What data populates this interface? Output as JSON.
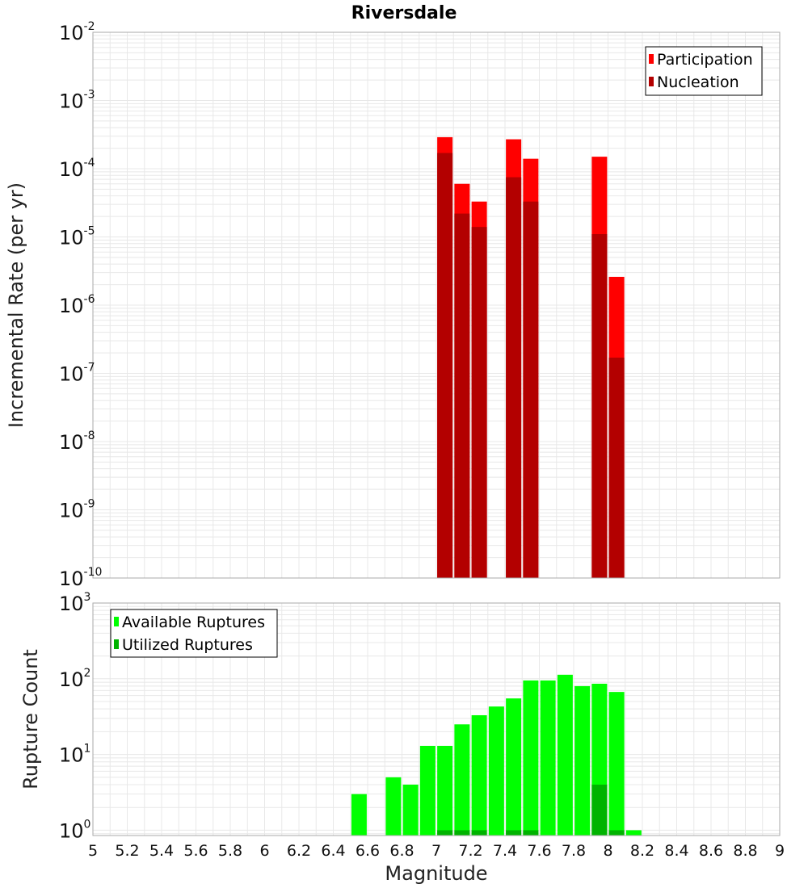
{
  "title": "Riversdale",
  "xlabel": "Magnitude",
  "x_ticks": [
    "5",
    "5.2",
    "5.4",
    "5.6",
    "5.8",
    "6",
    "6.2",
    "6.4",
    "6.6",
    "6.8",
    "7",
    "7.2",
    "7.4",
    "7.6",
    "7.8",
    "8",
    "8.2",
    "8.4",
    "8.6",
    "8.8",
    "9"
  ],
  "chart_data": [
    {
      "type": "bar",
      "scale": "log",
      "ylabel": "Incremental Rate (per yr)",
      "xlim": [
        5,
        9
      ],
      "ylim_exponents": [
        -10,
        -2
      ],
      "y_ticks": [
        {
          "base": "10",
          "exp": "-2"
        },
        {
          "base": "10",
          "exp": "-3"
        },
        {
          "base": "10",
          "exp": "-4"
        },
        {
          "base": "10",
          "exp": "-5"
        },
        {
          "base": "10",
          "exp": "-6"
        },
        {
          "base": "10",
          "exp": "-7"
        },
        {
          "base": "10",
          "exp": "-8"
        },
        {
          "base": "10",
          "exp": "-9"
        },
        {
          "base": "10",
          "exp": "-10"
        }
      ],
      "legend_position": "top-right",
      "grid": true,
      "series": [
        {
          "name": "Participation",
          "color": "#ff0000",
          "points": [
            {
              "x": 7.05,
              "y": 0.00029
            },
            {
              "x": 7.15,
              "y": 6e-05
            },
            {
              "x": 7.25,
              "y": 3.3e-05
            },
            {
              "x": 7.45,
              "y": 0.00027
            },
            {
              "x": 7.55,
              "y": 0.00014
            },
            {
              "x": 7.95,
              "y": 0.00015
            },
            {
              "x": 8.05,
              "y": 2.6e-06
            }
          ]
        },
        {
          "name": "Nucleation",
          "color": "#b30000",
          "points": [
            {
              "x": 7.05,
              "y": 0.00017
            },
            {
              "x": 7.15,
              "y": 2.2e-05
            },
            {
              "x": 7.25,
              "y": 1.4e-05
            },
            {
              "x": 7.45,
              "y": 7.5e-05
            },
            {
              "x": 7.55,
              "y": 3.3e-05
            },
            {
              "x": 7.95,
              "y": 1.1e-05
            },
            {
              "x": 8.05,
              "y": 1.7e-07
            }
          ]
        }
      ]
    },
    {
      "type": "bar",
      "scale": "log",
      "ylabel": "Rupture Count",
      "xlim": [
        5,
        9
      ],
      "ylim_exponents": [
        -0.07,
        3
      ],
      "y_ticks": [
        {
          "base": "10",
          "exp": "3"
        },
        {
          "base": "10",
          "exp": "2"
        },
        {
          "base": "10",
          "exp": "1"
        },
        {
          "base": "10",
          "exp": "0"
        }
      ],
      "legend_position": "top-left",
      "grid": true,
      "series": [
        {
          "name": "Available Ruptures",
          "color": "#00ff00",
          "points": [
            {
              "x": 6.55,
              "y": 3
            },
            {
              "x": 6.75,
              "y": 5
            },
            {
              "x": 6.85,
              "y": 4
            },
            {
              "x": 6.95,
              "y": 13
            },
            {
              "x": 7.05,
              "y": 13
            },
            {
              "x": 7.15,
              "y": 25
            },
            {
              "x": 7.25,
              "y": 33
            },
            {
              "x": 7.35,
              "y": 43
            },
            {
              "x": 7.45,
              "y": 55
            },
            {
              "x": 7.55,
              "y": 95
            },
            {
              "x": 7.65,
              "y": 95
            },
            {
              "x": 7.75,
              "y": 113
            },
            {
              "x": 7.85,
              "y": 80
            },
            {
              "x": 7.95,
              "y": 86
            },
            {
              "x": 8.05,
              "y": 67
            },
            {
              "x": 8.15,
              "y": 1
            }
          ]
        },
        {
          "name": "Utilized Ruptures",
          "color": "#00b300",
          "points": [
            {
              "x": 7.05,
              "y": 1
            },
            {
              "x": 7.15,
              "y": 1
            },
            {
              "x": 7.25,
              "y": 1
            },
            {
              "x": 7.45,
              "y": 1
            },
            {
              "x": 7.55,
              "y": 1
            },
            {
              "x": 7.95,
              "y": 4
            },
            {
              "x": 8.05,
              "y": 1
            }
          ]
        }
      ]
    }
  ]
}
